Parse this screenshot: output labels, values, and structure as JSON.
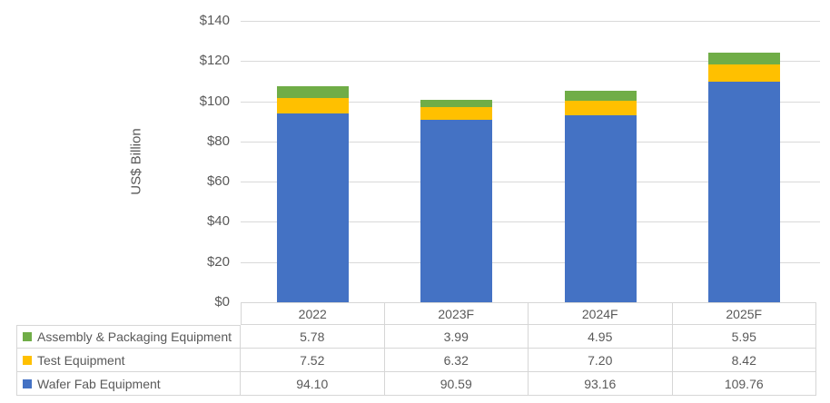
{
  "colors": {
    "wafer_fab": "#4472C4",
    "test": "#FFC000",
    "assembly": "#70AD47",
    "gridline": "#D9D9D9",
    "axis_text": "#595959",
    "table_border": "#D6D6D6",
    "table_text": "#595959"
  },
  "chart_data": {
    "type": "bar",
    "stacked": true,
    "title": "",
    "ylabel": "US$ Billion",
    "xlabel": "",
    "ylim": [
      0,
      140
    ],
    "ytick_step": 20,
    "ytick_labels": [
      "$0",
      "$20",
      "$40",
      "$60",
      "$80",
      "$100",
      "$120",
      "$140"
    ],
    "grid": true,
    "legend_position": "table-left",
    "categories": [
      "2022",
      "2023F",
      "2024F",
      "2025F"
    ],
    "series": [
      {
        "name": "Wafer Fab Equipment",
        "color": "#4472C4",
        "values": [
          94.1,
          90.59,
          93.16,
          109.76
        ]
      },
      {
        "name": "Test Equipment",
        "color": "#FFC000",
        "values": [
          7.52,
          6.32,
          7.2,
          8.42
        ]
      },
      {
        "name": "Assembly & Packaging Equipment",
        "color": "#70AD47",
        "values": [
          5.78,
          3.99,
          4.95,
          5.95
        ]
      }
    ]
  },
  "table": {
    "column_headers": [
      "2022",
      "2023F",
      "2024F",
      "2025F"
    ],
    "rows": [
      {
        "label": "Assembly & Packaging Equipment",
        "color": "#70AD47",
        "values": [
          "5.78",
          "3.99",
          "4.95",
          "5.95"
        ]
      },
      {
        "label": "Test Equipment",
        "color": "#FFC000",
        "values": [
          "7.52",
          "6.32",
          "7.20",
          "8.42"
        ]
      },
      {
        "label": "Wafer Fab Equipment",
        "color": "#4472C4",
        "values": [
          "94.10",
          "90.59",
          "93.16",
          "109.76"
        ]
      }
    ]
  }
}
